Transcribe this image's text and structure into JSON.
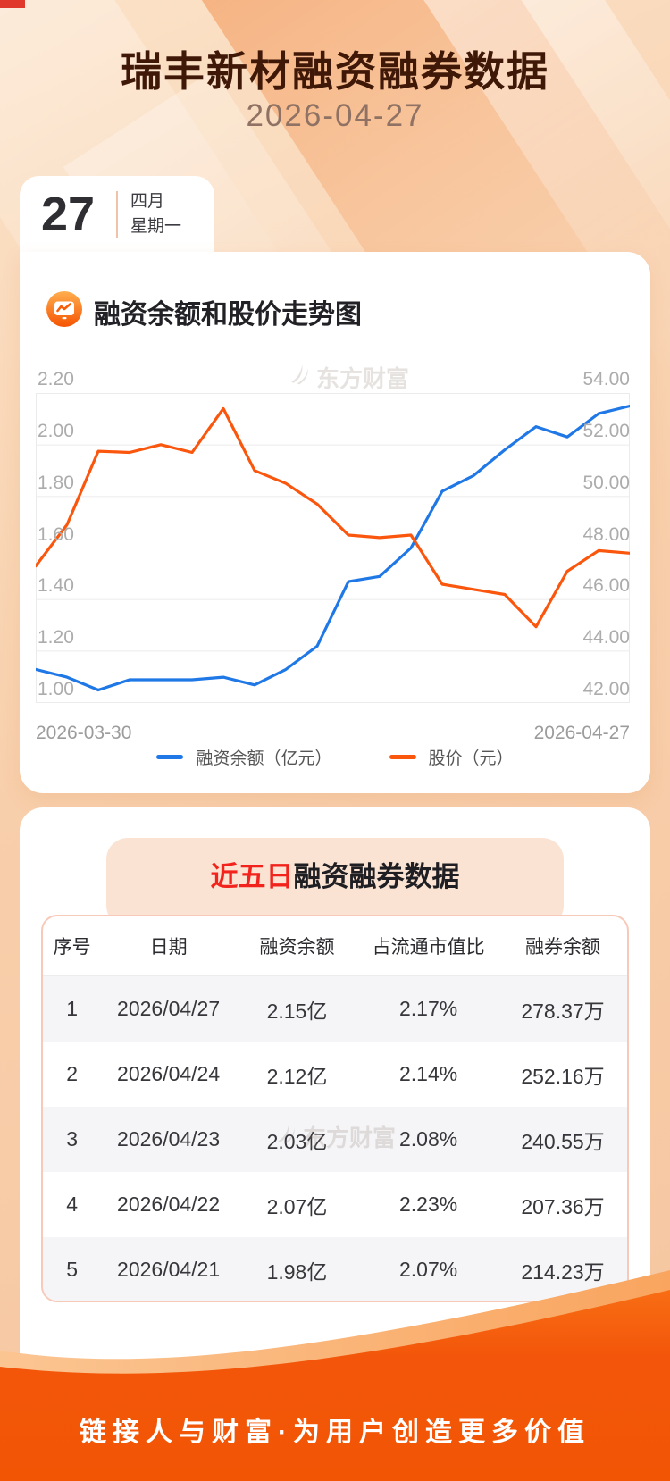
{
  "header": {
    "title": "瑞丰新材融资融券数据",
    "date": "2026-04-27"
  },
  "calendar": {
    "day": "27",
    "month": "四月",
    "weekday": "星期一"
  },
  "watermark": {
    "text": "东方财富"
  },
  "chart": {
    "section_title": "融资余额和股价走势图",
    "legend": [
      "融资余额（亿元）",
      "股价（元）"
    ],
    "x_start": "2026-03-30",
    "x_end": "2026-04-27"
  },
  "chart_data": {
    "type": "line",
    "title": "融资余额和股价走势图",
    "x_axis": {
      "start": "2026-03-30",
      "end": "2026-04-27",
      "points": 20
    },
    "left_axis": {
      "label": "融资余额（亿元）",
      "range": [
        1.0,
        2.2
      ],
      "ticks": [
        "2.20",
        "2.00",
        "1.80",
        "1.60",
        "1.40",
        "1.20",
        "1.00"
      ]
    },
    "right_axis": {
      "label": "股价（元）",
      "range": [
        42,
        54
      ],
      "ticks": [
        "54.00",
        "52.00",
        "50.00",
        "48.00",
        "46.00",
        "44.00",
        "42.00"
      ]
    },
    "grid": true,
    "legend_position": "bottom",
    "series": [
      {
        "name": "融资余额（亿元）",
        "axis": "left",
        "color": "#1f78e6",
        "values": [
          1.13,
          1.1,
          1.05,
          1.09,
          1.09,
          1.09,
          1.1,
          1.07,
          1.13,
          1.22,
          1.47,
          1.49,
          1.6,
          1.82,
          1.88,
          1.98,
          2.07,
          2.03,
          2.12,
          2.15
        ]
      },
      {
        "name": "股价（元）",
        "axis": "right",
        "color": "#fb560d",
        "values": [
          47.3,
          48.9,
          51.75,
          51.7,
          52.0,
          51.7,
          53.4,
          51.0,
          50.5,
          49.7,
          48.5,
          48.4,
          48.5,
          46.6,
          46.4,
          46.2,
          44.95,
          47.1,
          47.9,
          47.8
        ]
      }
    ]
  },
  "table": {
    "title_highlight": "近五日",
    "title_rest": "融资融券数据",
    "headers": [
      "序号",
      "日期",
      "融资余额",
      "占流通市值比",
      "融券余额"
    ],
    "rows": [
      [
        "1",
        "2026/04/27",
        "2.15亿",
        "2.17%",
        "278.37万"
      ],
      [
        "2",
        "2026/04/24",
        "2.12亿",
        "2.14%",
        "252.16万"
      ],
      [
        "3",
        "2026/04/23",
        "2.03亿",
        "2.08%",
        "240.55万"
      ],
      [
        "4",
        "2026/04/22",
        "2.07亿",
        "2.23%",
        "207.36万"
      ],
      [
        "5",
        "2026/04/21",
        "1.98亿",
        "2.07%",
        "214.23万"
      ]
    ]
  },
  "footer": {
    "slogan": "链接人与财富·为用户创造更多价值"
  },
  "colors": {
    "accent_orange": "#f4570b",
    "line_blue": "#1f78e6",
    "line_orange": "#fb560d",
    "title_brown": "#3f1808",
    "highlight_red": "#f2231d",
    "grid": "#ebebeb"
  }
}
